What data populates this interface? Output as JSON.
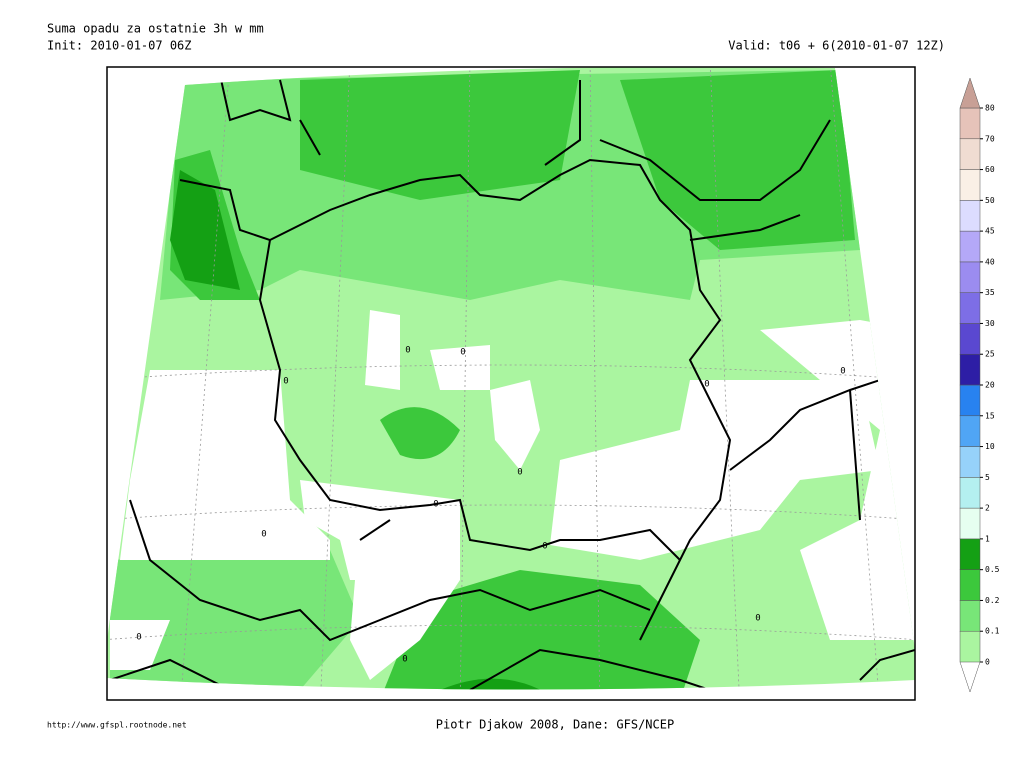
{
  "header": {
    "title": "Suma opadu za ostatnie 3h w mm",
    "init": "Init: 2010-01-07 06Z",
    "valid": "Valid: t06 + 6(2010-01-07 12Z)"
  },
  "map": {
    "contour_labels": [
      0,
      0,
      0,
      0,
      0,
      0,
      0,
      0,
      0,
      0,
      0,
      0
    ]
  },
  "legend": {
    "levels": [
      0,
      0.1,
      0.2,
      0.5,
      1,
      2,
      5,
      10,
      15,
      20,
      25,
      30,
      35,
      40,
      45,
      50,
      60,
      70,
      80
    ],
    "colors": [
      "#aaf5a0",
      "#78e678",
      "#3cc83c",
      "#14a014",
      "#e6fff0",
      "#b4f0f0",
      "#96d2fa",
      "#50a5f5",
      "#2882f0",
      "#2d1ea5",
      "#5a48d0",
      "#7d6ee6",
      "#9b8cf0",
      "#b4a8f8",
      "#dcdcff",
      "#faf0e6",
      "#f0dcd2",
      "#e6c3b9"
    ],
    "over_color": "#c8a096"
  },
  "footer": {
    "url": "http://www.gfspl.rootnode.net",
    "credit": "Piotr Djakow 2008, Dane: GFS/NCEP"
  }
}
